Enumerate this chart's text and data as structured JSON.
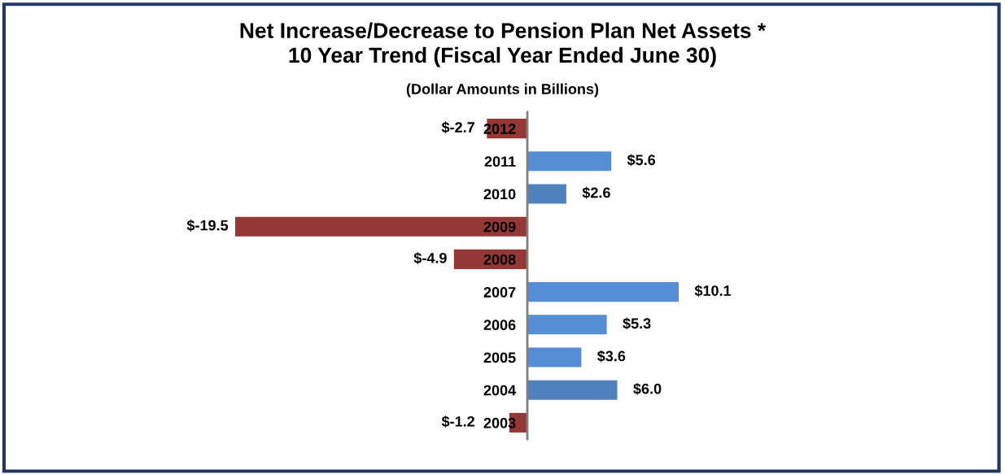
{
  "chart_data": {
    "type": "bar",
    "orientation": "horizontal",
    "title": "Net Increase/Decrease to Pension Plan Net Assets *\n10 Year Trend (Fiscal Year Ended June 30)",
    "subtitle": "(Dollar Amounts in Billions)",
    "categories": [
      "2012",
      "2011",
      "2010",
      "2009",
      "2008",
      "2007",
      "2006",
      "2005",
      "2004",
      "2003"
    ],
    "values": [
      -2.7,
      5.6,
      2.6,
      -19.5,
      -4.9,
      10.1,
      5.3,
      3.6,
      6.0,
      -1.2
    ],
    "colors": [
      "#953735",
      "#558ed5",
      "#4f81bd",
      "#953735",
      "#953735",
      "#558ed5",
      "#558ed5",
      "#558ed5",
      "#4f81bd",
      "#953735"
    ],
    "value_labels": [
      "$-2.7",
      "$5.6",
      "$2.6",
      "$-19.5",
      "$-4.9",
      "$10.1",
      "$5.3",
      "$3.6",
      "$6.0",
      "$-1.2"
    ],
    "tick_labels": "y",
    "grid": false,
    "legend": false
  }
}
